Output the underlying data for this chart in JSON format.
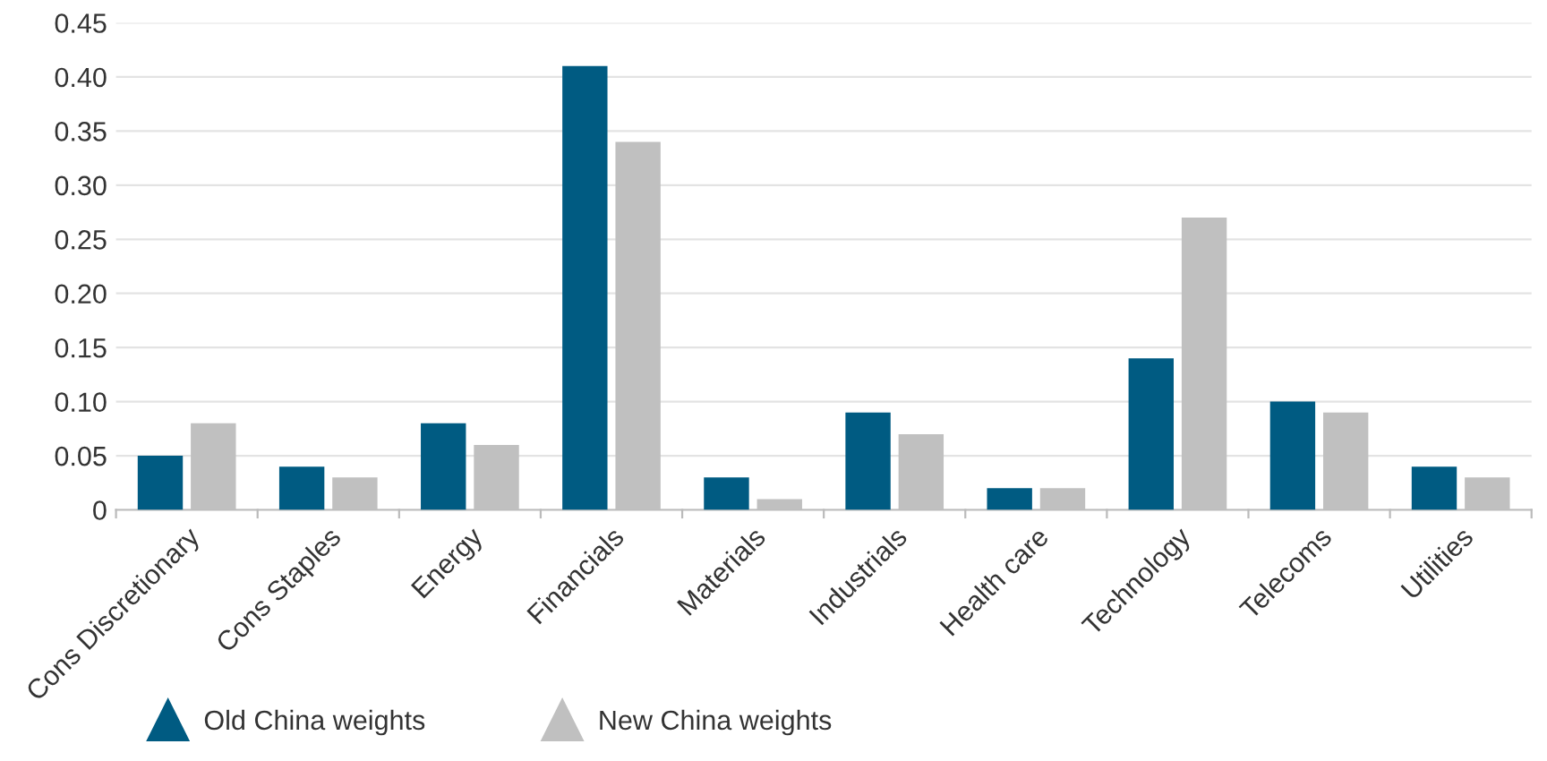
{
  "chart_data": {
    "type": "bar",
    "categories": [
      "Cons Discretionary",
      "Cons Staples",
      "Energy",
      "Financials",
      "Materials",
      "Industrials",
      "Health care",
      "Technology",
      "Telecoms",
      "Utilities"
    ],
    "series": [
      {
        "name": "Old China weights",
        "color": "#005b82",
        "values": [
          0.05,
          0.04,
          0.08,
          0.41,
          0.03,
          0.09,
          0.02,
          0.14,
          0.1,
          0.04
        ]
      },
      {
        "name": "New China weights",
        "color": "#c0c0c0",
        "values": [
          0.08,
          0.03,
          0.06,
          0.34,
          0.01,
          0.07,
          0.02,
          0.27,
          0.09,
          0.03
        ]
      }
    ],
    "ylim": [
      0,
      0.45
    ],
    "yticks": [
      0,
      0.05,
      {
        "value": 0.1,
        "label": "0.10"
      },
      0.15,
      {
        "value": 0.2,
        "label": "0.20"
      },
      0.25,
      {
        "value": 0.3,
        "label": "0.30"
      },
      0.35,
      {
        "value": 0.4,
        "label": "0.40"
      },
      0.45
    ],
    "grid": "y",
    "legend": "bottom left",
    "marker": "triangle"
  }
}
